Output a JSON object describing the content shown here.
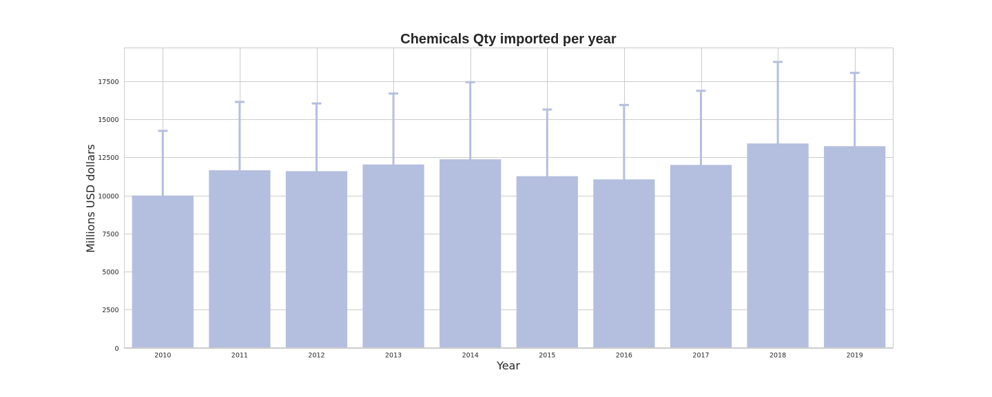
{
  "chart_data": {
    "type": "bar",
    "title": "Chemicals Qty imported per year",
    "xlabel": "Year",
    "ylabel": "Millions USD dollars",
    "categories": [
      "2010",
      "2011",
      "2012",
      "2013",
      "2014",
      "2015",
      "2016",
      "2017",
      "2018",
      "2019"
    ],
    "values": [
      10000,
      11660,
      11600,
      12040,
      12380,
      11270,
      11060,
      12010,
      13420,
      13240
    ],
    "error_upper": [
      14250,
      16150,
      16050,
      16700,
      17450,
      15650,
      15950,
      16880,
      18780,
      18060
    ],
    "yticks": [
      0,
      2500,
      5000,
      7500,
      10000,
      12500,
      15000,
      17500
    ],
    "ylim": [
      0,
      19700
    ],
    "grid": true,
    "bar_color": "#b4bfdf",
    "errorbar_color": "#b4bfdf"
  }
}
